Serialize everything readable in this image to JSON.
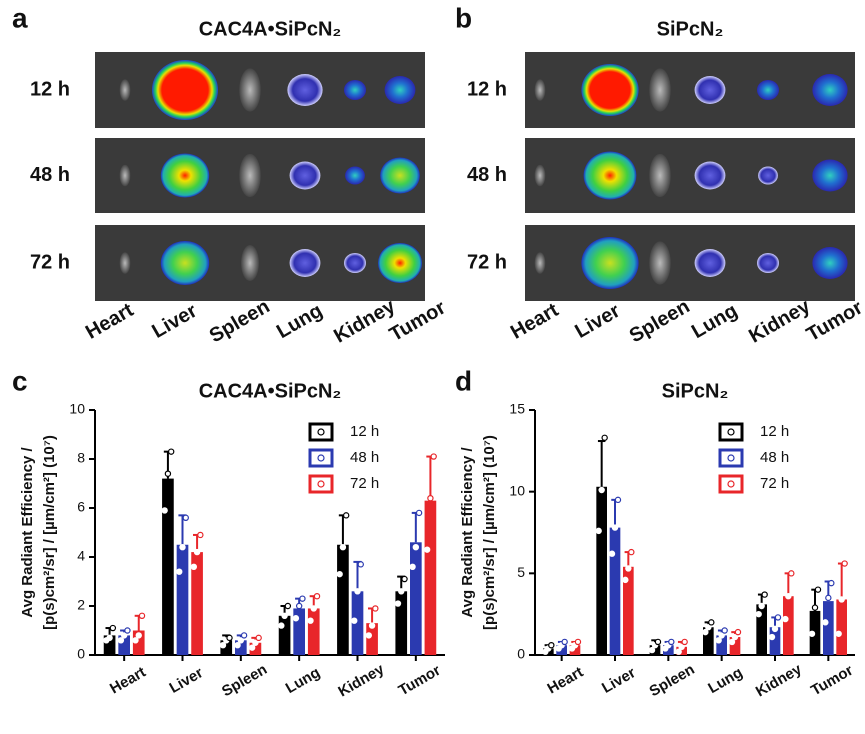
{
  "panels": [
    {
      "label": "a",
      "title": "CAC4A•SiPcN₂",
      "rows": [
        "12 h",
        "48 h",
        "72 h"
      ],
      "organs": [
        "Heart",
        "Liver",
        "Spleen",
        "Lung",
        "Kidney",
        "Tumor"
      ]
    },
    {
      "label": "b",
      "title": "SiPcN₂",
      "rows": [
        "12 h",
        "48 h",
        "72 h"
      ],
      "organs": [
        "Heart",
        "Liver",
        "Spleen",
        "Lung",
        "Kidney",
        "Tumor"
      ]
    }
  ],
  "chart_data": [
    {
      "type": "bar",
      "panel_label": "c",
      "title": "CAC4A•SiPcN₂",
      "y_label": [
        "Avg Radiant Efficiency /",
        "[p(s)cm²/sr] / [µm/cm²] (10⁷)"
      ],
      "categories": [
        "Heart",
        "Liver",
        "Spleen",
        "Lung",
        "Kidney",
        "Tumor"
      ],
      "ylim": [
        0,
        10
      ],
      "yticks": [
        0,
        2,
        4,
        6,
        8,
        10
      ],
      "legend": "upper right",
      "series": [
        {
          "name": "12 h",
          "color": "#000000",
          "values": [
            0.8,
            7.2,
            0.6,
            1.6,
            4.5,
            2.6
          ],
          "errors": [
            0.3,
            1.1,
            0.2,
            0.4,
            1.2,
            0.6
          ],
          "points": [
            [
              0.6,
              0.7,
              1.1
            ],
            [
              5.9,
              7.4,
              8.3
            ],
            [
              0.4,
              0.6,
              0.7
            ],
            [
              1.2,
              1.6,
              2.0
            ],
            [
              3.3,
              4.4,
              5.7
            ],
            [
              2.1,
              2.6,
              3.1
            ]
          ]
        },
        {
          "name": "48 h",
          "color": "#2b3ab0",
          "values": [
            0.8,
            4.5,
            0.6,
            1.9,
            2.6,
            4.6
          ],
          "errors": [
            0.2,
            1.2,
            0.2,
            0.4,
            1.2,
            1.2
          ],
          "points": [
            [
              0.6,
              0.8,
              1.0
            ],
            [
              3.4,
              4.4,
              5.6
            ],
            [
              0.4,
              0.6,
              0.8
            ],
            [
              1.5,
              2.0,
              2.3
            ],
            [
              1.4,
              2.6,
              3.7
            ],
            [
              3.6,
              4.4,
              5.8
            ]
          ]
        },
        {
          "name": "72 h",
          "color": "#e8262a",
          "values": [
            1.0,
            4.2,
            0.5,
            1.9,
            1.3,
            6.3
          ],
          "errors": [
            0.6,
            0.7,
            0.2,
            0.5,
            0.6,
            1.8
          ],
          "points": [
            [
              0.6,
              0.8,
              1.6
            ],
            [
              3.6,
              4.2,
              4.9
            ],
            [
              0.3,
              0.5,
              0.7
            ],
            [
              1.4,
              1.9,
              2.4
            ],
            [
              0.8,
              1.2,
              1.9
            ],
            [
              4.3,
              6.4,
              8.1
            ]
          ]
        }
      ]
    },
    {
      "type": "bar",
      "panel_label": "d",
      "title": "SiPcN₂",
      "y_label": [
        "Avg Radiant Efficiency /",
        "[p(s)cm²/sr] / [µm/cm²] (10⁷)"
      ],
      "categories": [
        "Heart",
        "Liver",
        "Spleen",
        "Lung",
        "Kidney",
        "Tumor"
      ],
      "ylim": [
        0,
        15
      ],
      "yticks": [
        0,
        5,
        10,
        15
      ],
      "legend": "upper right",
      "series": [
        {
          "name": "12 h",
          "color": "#000000",
          "values": [
            0.4,
            10.3,
            0.6,
            1.7,
            3.1,
            2.7
          ],
          "errors": [
            0.2,
            2.8,
            0.3,
            0.3,
            0.6,
            1.3
          ],
          "points": [
            [
              0.2,
              0.4,
              0.6
            ],
            [
              7.6,
              10.1,
              13.3
            ],
            [
              0.3,
              0.6,
              0.8
            ],
            [
              1.4,
              1.7,
              2.0
            ],
            [
              2.5,
              3.0,
              3.7
            ],
            [
              1.3,
              2.9,
              4.0
            ]
          ]
        },
        {
          "name": "48 h",
          "color": "#2b3ab0",
          "values": [
            0.6,
            7.8,
            0.6,
            1.2,
            1.7,
            3.3
          ],
          "errors": [
            0.2,
            1.7,
            0.2,
            0.3,
            0.6,
            1.2
          ],
          "points": [
            [
              0.4,
              0.6,
              0.8
            ],
            [
              6.2,
              7.8,
              9.5
            ],
            [
              0.4,
              0.6,
              0.8
            ],
            [
              0.9,
              1.2,
              1.5
            ],
            [
              1.1,
              1.6,
              2.3
            ],
            [
              2.0,
              3.5,
              4.4
            ]
          ]
        },
        {
          "name": "72 h",
          "color": "#e8262a",
          "values": [
            0.6,
            5.4,
            0.5,
            1.1,
            3.6,
            3.4
          ],
          "errors": [
            0.2,
            0.9,
            0.3,
            0.3,
            1.4,
            2.2
          ],
          "points": [
            [
              0.4,
              0.6,
              0.8
            ],
            [
              4.6,
              5.3,
              6.3
            ],
            [
              0.2,
              0.5,
              0.8
            ],
            [
              0.8,
              1.1,
              1.4
            ],
            [
              2.2,
              3.6,
              5.0
            ],
            [
              1.3,
              3.4,
              5.6
            ]
          ]
        }
      ]
    }
  ]
}
